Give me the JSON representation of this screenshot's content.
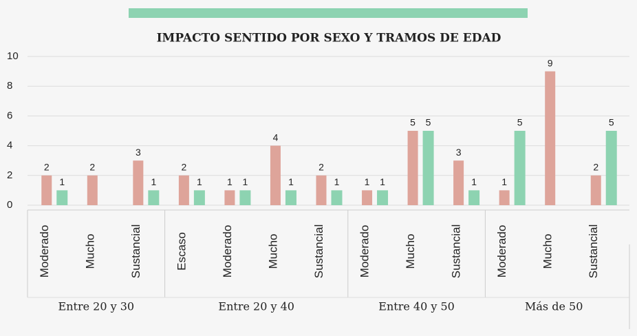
{
  "chart_data": {
    "type": "bar",
    "title": "IMPACTO SENTIDO POR SEXO Y TRAMOS DE EDAD",
    "groups": [
      {
        "label": "Entre 20 y 30",
        "categories": [
          "Moderado",
          "Mucho",
          "Sustancial"
        ]
      },
      {
        "label": "Entre 20 y 40",
        "categories": [
          "Escaso",
          "Moderado",
          "Mucho",
          "Sustancial"
        ]
      },
      {
        "label": "Entre 40 y 50",
        "categories": [
          "Moderado",
          "Mucho",
          "Sustancial"
        ]
      },
      {
        "label": "Más de 50",
        "categories": [
          "Moderado",
          "Mucho",
          "Sustancial"
        ]
      }
    ],
    "series": [
      {
        "color": "#dea49a",
        "values": [
          2,
          2,
          3,
          2,
          1,
          4,
          2,
          1,
          5,
          3,
          1,
          9,
          2
        ]
      },
      {
        "color": "#8dd3b1",
        "values": [
          1,
          null,
          1,
          1,
          1,
          1,
          1,
          1,
          5,
          1,
          5,
          null,
          5
        ]
      }
    ],
    "ylim": [
      0,
      10
    ],
    "yticks": [
      0,
      2,
      4,
      6,
      8,
      10
    ],
    "grid": true
  }
}
